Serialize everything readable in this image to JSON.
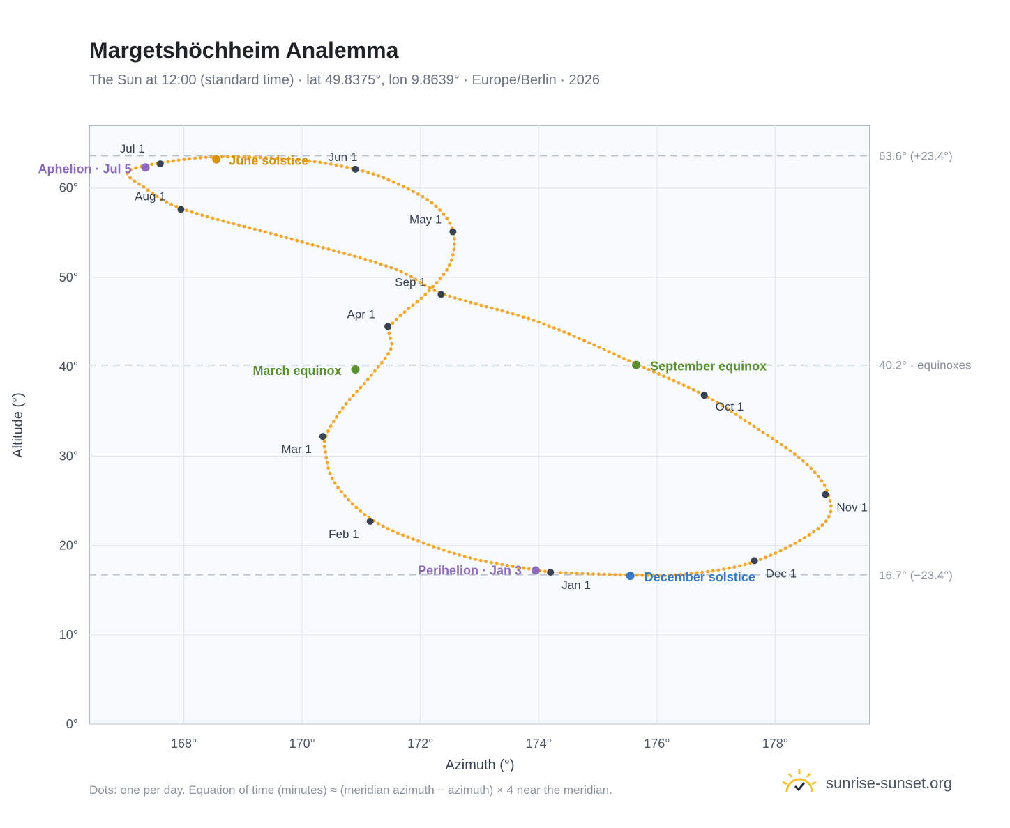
{
  "title": "Margetshöchheim Analemma",
  "subtitle": "The Sun at 12:00 (standard time) · lat 49.8375°, lon 9.8639° · Europe/Berlin · 2026",
  "footnote": "Dots: one per day. Equation of time (minutes) ≈ (meridian azimuth − azimuth) × 4 near the meridian.",
  "brand": {
    "text": "sunrise-sunset.org",
    "icon": "sun-check-icon"
  },
  "colors": {
    "curve": "#f2a72b",
    "month_dot": "#374151",
    "solstice_june": "#d4920f",
    "equinox": "#5b8f2e",
    "solstice_december": "#3a78c2",
    "apsis": "#8e6bb8",
    "plot_bg": "#f8fbfe",
    "grid": "#e3e8ee",
    "ref_line": "#b8c0ca"
  },
  "chart_data": {
    "type": "scatter",
    "title": "Margetshöchheim Analemma",
    "xlabel": "Azimuth (°)",
    "ylabel": "Altitude (°)",
    "xlim": [
      166.4,
      179.6
    ],
    "ylim": [
      0,
      67
    ],
    "grid": true,
    "x_ticks": [
      168,
      170,
      172,
      174,
      176,
      178
    ],
    "x_tick_labels": [
      "168°",
      "170°",
      "172°",
      "174°",
      "176°",
      "178°"
    ],
    "y_ticks": [
      0,
      10,
      20,
      30,
      40,
      50,
      60
    ],
    "y_tick_labels": [
      "0°",
      "10°",
      "20°",
      "30°",
      "40°",
      "50°",
      "60°"
    ],
    "curve": [
      [
        174.2,
        17.0
      ],
      [
        172.9,
        18.5
      ],
      [
        171.8,
        20.9
      ],
      [
        171.2,
        22.8
      ],
      [
        170.8,
        25.0
      ],
      [
        170.5,
        27.6
      ],
      [
        170.4,
        30.2
      ],
      [
        170.4,
        32.2
      ],
      [
        170.7,
        35.5
      ],
      [
        171.1,
        38.5
      ],
      [
        171.5,
        42.0
      ],
      [
        171.5,
        44.6
      ],
      [
        172.1,
        48.2
      ],
      [
        172.5,
        51.5
      ],
      [
        172.55,
        55.2
      ],
      [
        172.2,
        58.3
      ],
      [
        171.5,
        60.8
      ],
      [
        170.9,
        62.1
      ],
      [
        170.0,
        63.1
      ],
      [
        168.6,
        63.5
      ],
      [
        167.6,
        62.8
      ],
      [
        167.05,
        61.8
      ],
      [
        167.3,
        60.2
      ],
      [
        168.0,
        57.6
      ],
      [
        169.7,
        54.5
      ],
      [
        171.5,
        51.1
      ],
      [
        172.4,
        48.1
      ],
      [
        174.0,
        45.0
      ],
      [
        175.65,
        40.3
      ],
      [
        176.8,
        36.8
      ],
      [
        177.6,
        33.5
      ],
      [
        178.5,
        29.3
      ],
      [
        178.9,
        25.7
      ],
      [
        178.8,
        22.3
      ],
      [
        177.7,
        18.3
      ],
      [
        176.5,
        16.8
      ],
      [
        175.5,
        16.7
      ],
      [
        174.2,
        17.0
      ]
    ],
    "month_markers": [
      {
        "label": "Jan 1",
        "x": 174.2,
        "y": 17.0
      },
      {
        "label": "Feb 1",
        "x": 171.15,
        "y": 22.7
      },
      {
        "label": "Mar 1",
        "x": 170.35,
        "y": 32.2
      },
      {
        "label": "Apr 1",
        "x": 171.45,
        "y": 44.5
      },
      {
        "label": "May 1",
        "x": 172.55,
        "y": 55.1
      },
      {
        "label": "Jun 1",
        "x": 170.9,
        "y": 62.1
      },
      {
        "label": "Jul 1",
        "x": 167.6,
        "y": 62.7
      },
      {
        "label": "Aug 1",
        "x": 167.95,
        "y": 57.6
      },
      {
        "label": "Sep 1",
        "x": 172.35,
        "y": 48.1
      },
      {
        "label": "Oct 1",
        "x": 176.8,
        "y": 36.8
      },
      {
        "label": "Nov 1",
        "x": 178.85,
        "y": 25.7
      },
      {
        "label": "Dec 1",
        "x": 177.65,
        "y": 18.3
      }
    ],
    "events": [
      {
        "label": "June solstice",
        "x": 168.55,
        "y": 63.2,
        "color": "#d4920f"
      },
      {
        "label": "March equinox",
        "x": 170.9,
        "y": 39.7,
        "color": "#5b8f2e"
      },
      {
        "label": "September equinox",
        "x": 175.65,
        "y": 40.2,
        "color": "#5b8f2e"
      },
      {
        "label": "December solstice",
        "x": 175.55,
        "y": 16.6,
        "color": "#3a78c2"
      },
      {
        "label": "Aphelion · Jul 5",
        "x": 167.35,
        "y": 62.3,
        "color": "#8e6bb8"
      },
      {
        "label": "Perihelion · Jan 3",
        "x": 173.95,
        "y": 17.2,
        "color": "#8e6bb8"
      }
    ],
    "reference_lines": [
      {
        "y": 63.6,
        "label": "63.6° (+23.4°)"
      },
      {
        "y": 40.2,
        "label": "40.2° · equinoxes"
      },
      {
        "y": 16.7,
        "label": "16.7° (−23.4°)"
      }
    ]
  }
}
